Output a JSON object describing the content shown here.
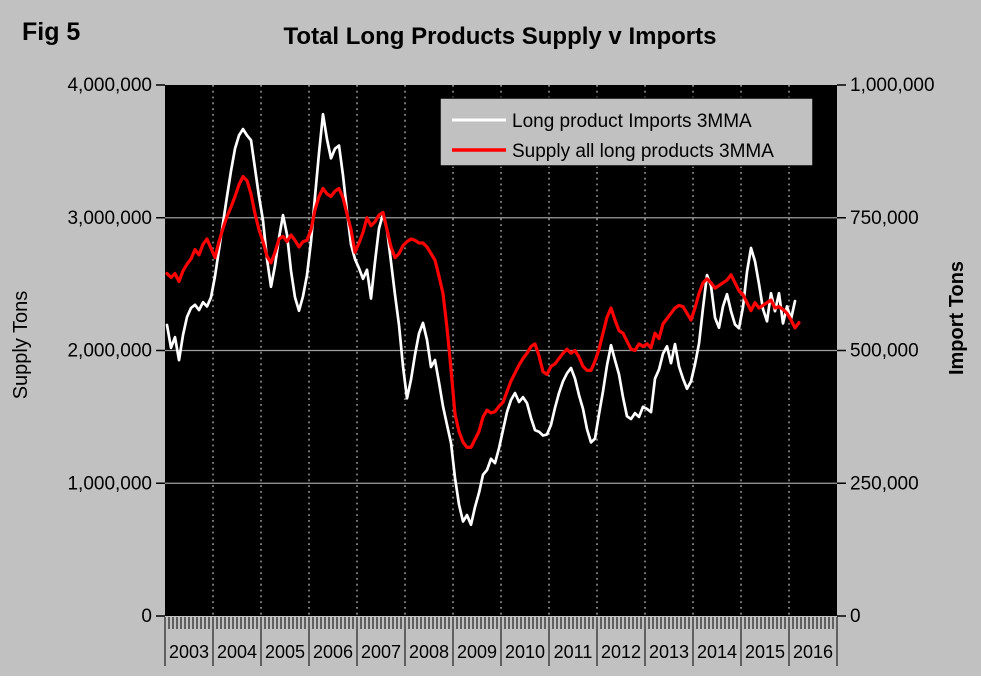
{
  "figure_label": "Fig 5",
  "colors": {
    "background": "#c1c1c1",
    "plot_background": "#000000",
    "imports_line": "#ffffff",
    "supply_line": "#ff0000",
    "fig_label": "#ffff00",
    "grid_horizontal": "#9e9e9e",
    "grid_vertical": "#c8c8c8",
    "axis_ink": "#000000",
    "legend_background": "#c1c1c1"
  },
  "chart_data": {
    "type": "line",
    "title": "Total Long Products Supply v Imports",
    "x_unit": "month",
    "x_start": "2003-01",
    "x_end": "2016-03",
    "n_months": 159,
    "grid": "both",
    "x_axis": {
      "year_labels": [
        "2003",
        "2004",
        "2005",
        "2006",
        "2007",
        "2008",
        "2009",
        "2010",
        "2011",
        "2012",
        "2013",
        "2014",
        "2015",
        "2016"
      ]
    },
    "left_axis": {
      "label": "Supply Tons",
      "tick_labels": [
        "4,000,000",
        "3,000,000",
        "2,000,000",
        "1,000,000",
        "0"
      ],
      "tick_values": [
        4000000,
        3000000,
        2000000,
        1000000,
        0
      ],
      "grid_values": [
        3000000,
        2000000,
        1000000
      ],
      "range": [
        0,
        4000000
      ]
    },
    "right_axis": {
      "label": "Import Tons",
      "tick_labels": [
        "1,000,000",
        "750,000",
        "500,000",
        "250,000",
        "0"
      ],
      "tick_values": [
        1000000,
        750000,
        500000,
        250000,
        0
      ],
      "range": [
        0,
        1000000
      ]
    },
    "legend": {
      "position": "top-center",
      "entries": [
        {
          "label": "Long product Imports 3MMA",
          "color": "#ffffff"
        },
        {
          "label": "Supply all long products 3MMA",
          "color": "#ff0000"
        }
      ]
    },
    "series": [
      {
        "name": "Long product Imports 3MMA",
        "axis": "right",
        "color": "#ffffff",
        "values": [
          548000,
          505000,
          525000,
          482000,
          529000,
          563000,
          580000,
          586000,
          576000,
          591000,
          583000,
          600000,
          640000,
          690000,
          740000,
          790000,
          838000,
          880000,
          905000,
          917000,
          905000,
          896000,
          843000,
          790000,
          745000,
          672000,
          620000,
          660000,
          712000,
          755000,
          718000,
          650000,
          600000,
          575000,
          602000,
          642000,
          705000,
          790000,
          872000,
          945000,
          898000,
          862000,
          880000,
          886000,
          830000,
          762000,
          700000,
          672000,
          655000,
          635000,
          652000,
          598000,
          667000,
          730000,
          757000,
          728000,
          667000,
          605000,
          548000,
          470000,
          410000,
          445000,
          492000,
          532000,
          552000,
          520000,
          469000,
          482000,
          440000,
          395000,
          360000,
          326000,
          260000,
          210000,
          178000,
          190000,
          172000,
          205000,
          232000,
          266000,
          275000,
          296000,
          288000,
          316000,
          350000,
          384000,
          407000,
          420000,
          403000,
          412000,
          401000,
          373000,
          350000,
          347000,
          340000,
          342000,
          360000,
          392000,
          420000,
          442000,
          457000,
          467000,
          447000,
          416000,
          390000,
          352000,
          327000,
          334000,
          380000,
          423000,
          472000,
          510000,
          482000,
          455000,
          412000,
          376000,
          371000,
          382000,
          375000,
          394000,
          390000,
          384000,
          447000,
          464000,
          494000,
          508000,
          476000,
          512000,
          470000,
          447000,
          428000,
          442000,
          474000,
          513000,
          580000,
          642000,
          622000,
          562000,
          543000,
          583000,
          606000,
          574000,
          549000,
          542000,
          582000,
          648000,
          693000,
          668000,
          625000,
          578000,
          555000,
          608000,
          574000,
          608000,
          551000,
          583000,
          559000,
          593000,
          null
        ]
      },
      {
        "name": "Supply all long products 3MMA",
        "axis": "left",
        "color": "#ff0000",
        "values": [
          2580000,
          2550000,
          2580000,
          2520000,
          2600000,
          2650000,
          2690000,
          2760000,
          2720000,
          2800000,
          2840000,
          2770000,
          2700000,
          2820000,
          2920000,
          3010000,
          3080000,
          3160000,
          3250000,
          3310000,
          3280000,
          3180000,
          3030000,
          2910000,
          2820000,
          2710000,
          2660000,
          2740000,
          2840000,
          2860000,
          2820000,
          2870000,
          2830000,
          2780000,
          2820000,
          2830000,
          2910000,
          3060000,
          3160000,
          3220000,
          3180000,
          3160000,
          3200000,
          3220000,
          3150000,
          3030000,
          2910000,
          2740000,
          2810000,
          2890000,
          3000000,
          2940000,
          2970000,
          3020000,
          3040000,
          2910000,
          2780000,
          2700000,
          2730000,
          2790000,
          2820000,
          2840000,
          2830000,
          2810000,
          2810000,
          2780000,
          2730000,
          2680000,
          2560000,
          2430000,
          2170000,
          1860000,
          1520000,
          1390000,
          1310000,
          1270000,
          1270000,
          1330000,
          1390000,
          1500000,
          1550000,
          1530000,
          1540000,
          1580000,
          1610000,
          1690000,
          1770000,
          1830000,
          1890000,
          1940000,
          1980000,
          2030000,
          2050000,
          1960000,
          1840000,
          1820000,
          1880000,
          1900000,
          1940000,
          1980000,
          2010000,
          1980000,
          2000000,
          1950000,
          1880000,
          1850000,
          1850000,
          1920000,
          2010000,
          2130000,
          2250000,
          2320000,
          2230000,
          2150000,
          2130000,
          2070000,
          2010000,
          2000000,
          2050000,
          2030000,
          2050000,
          2020000,
          2130000,
          2090000,
          2200000,
          2240000,
          2280000,
          2320000,
          2340000,
          2330000,
          2280000,
          2230000,
          2320000,
          2430000,
          2510000,
          2540000,
          2510000,
          2470000,
          2490000,
          2510000,
          2530000,
          2570000,
          2510000,
          2450000,
          2420000,
          2360000,
          2300000,
          2360000,
          2320000,
          2340000,
          2360000,
          2380000,
          2320000,
          2330000,
          2310000,
          2280000,
          2230000,
          2170000,
          2210000
        ]
      }
    ]
  }
}
